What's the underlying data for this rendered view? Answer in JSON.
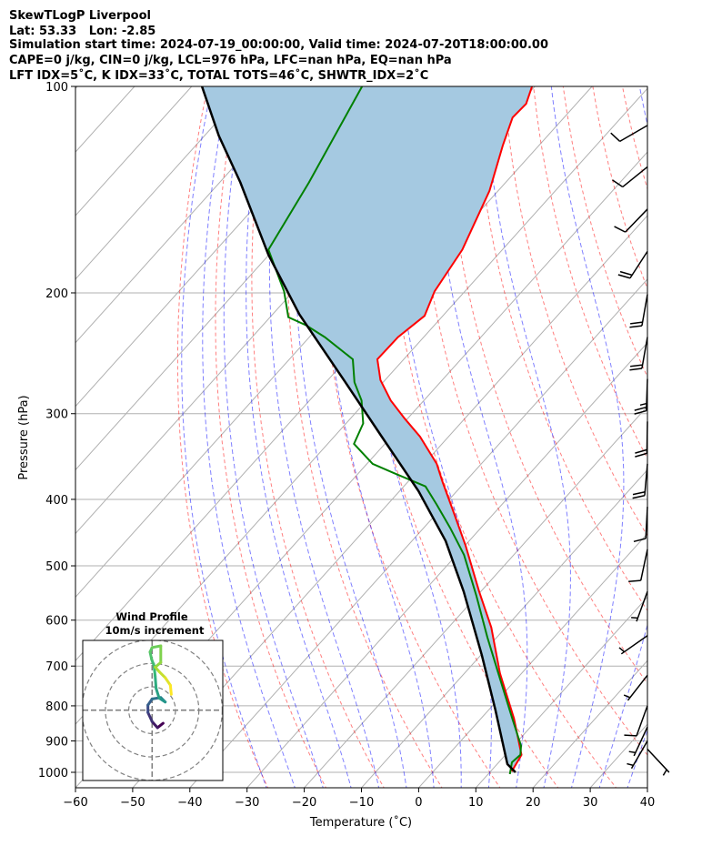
{
  "header": {
    "line1": "SkewTLogP Liverpool",
    "line2": "Lat: 53.33   Lon: -2.85",
    "line3": "Simulation start time: 2024-07-19_00:00:00, Valid time: 2024-07-20T18:00:00.00",
    "line4": "CAPE=0 j/kg, CIN=0 j/kg, LCL=976 hPa, LFC=nan hPa, EQ=nan hPa",
    "line5": "LFT IDX=5˚C, K IDX=33˚C, TOTAL TOTS=46˚C, SHWTR_IDX=2˚C"
  },
  "chart_data": {
    "type": "line",
    "title": "SkewTLogP Liverpool",
    "xlabel": "Temperature (˚C)",
    "ylabel": "Pressure (hPa)",
    "xlim": [
      -60,
      40
    ],
    "ylim": [
      1053,
      100
    ],
    "y_scale": "log",
    "grid": true,
    "x_ticks": [
      -60,
      -50,
      -40,
      -30,
      -20,
      -10,
      0,
      10,
      20,
      30,
      40
    ],
    "y_ticks": [
      100,
      200,
      300,
      400,
      500,
      600,
      700,
      800,
      900,
      1000
    ],
    "colors": {
      "temperature": "#ff0000",
      "dewpoint": "#008000",
      "parcel": "#000000",
      "cape_fill": "#a5c9e1",
      "dry_adiabat": "#ff0000",
      "moist_adiabat": "#0000ff",
      "isotherm": "#808080"
    },
    "series": [
      {
        "name": "temperature",
        "p": [
          997,
          943,
          835,
          717,
          615,
          545,
          467,
          414,
          378,
          355,
          324,
          305,
          287,
          268,
          250,
          232,
          216,
          199,
          173,
          142,
          122,
          111,
          106,
          100
        ],
        "T": [
          13.7,
          12.8,
          5.8,
          -3.8,
          -12.5,
          -20.3,
          -29.9,
          -37.8,
          -43.8,
          -47.8,
          -55.0,
          -60.5,
          -65.8,
          -70.8,
          -74.6,
          -74.5,
          -73.2,
          -75.3,
          -77.0,
          -81.5,
          -86.3,
          -89.0,
          -88.8,
          -90.5
        ]
      },
      {
        "name": "dewpoint",
        "p": [
          1006,
          967,
          943,
          915,
          835,
          717,
          635,
          553,
          482,
          440,
          407,
          383,
          366,
          355,
          332,
          310,
          287,
          270,
          250,
          232,
          223,
          217,
          199,
          173,
          138,
          100
        ],
        "T": [
          13.8,
          12.3,
          12.6,
          11.3,
          5.5,
          -4.1,
          -11.7,
          -20.1,
          -28.7,
          -35.4,
          -41.4,
          -46.2,
          -53.9,
          -59.0,
          -65.4,
          -67.0,
          -70.9,
          -75.0,
          -78.9,
          -87.3,
          -92.4,
          -96.8,
          -101.6,
          -110.9,
          -114.4,
          -120.2
        ]
      },
      {
        "name": "parcel",
        "p": [
          1000,
          973,
          810,
          675,
          545,
          460,
          389,
          324,
          270,
          215,
          176,
          138,
          118,
          100
        ],
        "T": [
          14.5,
          11.8,
          1.1,
          -9.8,
          -23.0,
          -34.1,
          -46.7,
          -61.7,
          -76.6,
          -95.3,
          -110.1,
          -126.4,
          -137.5,
          -148.2
        ]
      }
    ],
    "wind_barbs": {
      "units": "kt",
      "p": [
        114,
        131,
        151,
        174,
        201,
        232,
        267,
        308,
        355,
        410,
        473,
        545,
        632,
        722,
        800,
        859,
        900,
        925
      ],
      "direction": [
        240,
        231,
        224,
        213,
        190,
        190,
        182,
        181,
        185,
        183,
        192,
        200,
        235,
        218,
        200,
        205,
        210,
        137
      ],
      "speed": [
        10,
        10,
        10,
        20,
        20,
        20,
        25,
        20,
        20,
        10,
        10,
        5,
        5,
        5,
        10,
        5,
        5,
        5
      ]
    },
    "hodograph": {
      "title": "Wind Profile",
      "subtitle": "10m/s increment",
      "ring_step_ms": 10,
      "rings": 3,
      "u": [
        4.7,
        2.3,
        0,
        -1.8,
        -1.8,
        0,
        3.7,
        5.6,
        3.0,
        1.7,
        1.3,
        0.8,
        -0.2,
        -0.9,
        0,
        3.7,
        3.7,
        1.3,
        3.0,
        5.6,
        7.8,
        8.2
      ],
      "v": [
        -5.6,
        -7.5,
        -4.9,
        -1.0,
        2.2,
        4.8,
        5.4,
        3.5,
        5.2,
        9.3,
        14.6,
        19.1,
        21.7,
        24.9,
        26.8,
        27.5,
        20.4,
        18.4,
        16.5,
        13.9,
        10.7,
        6.8
      ],
      "colormap": "viridis"
    }
  }
}
